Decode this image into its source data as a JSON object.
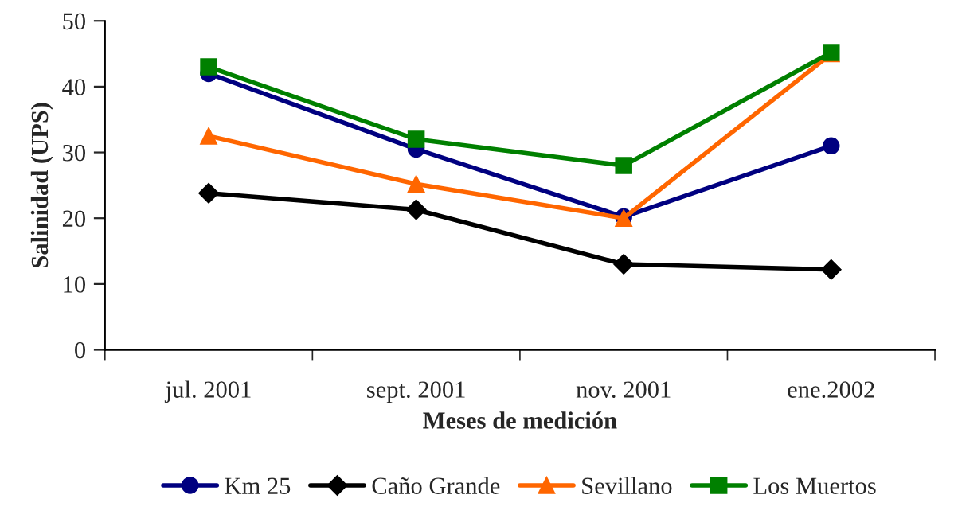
{
  "chart_data": {
    "type": "line",
    "xlabel": "Meses de medición",
    "ylabel": "Salinidad (UPS)",
    "categories": [
      "jul. 2001",
      "sept. 2001",
      "nov. 2001",
      "ene.2002"
    ],
    "series": [
      {
        "name": "Km 25",
        "color": "#000080",
        "marker": "circle",
        "values": [
          42,
          30.5,
          20.2,
          31
        ]
      },
      {
        "name": "Caño Grande",
        "color": "#000000",
        "marker": "diamond",
        "values": [
          23.8,
          21.3,
          13,
          12.2
        ]
      },
      {
        "name": "Sevillano",
        "color": "#ff6600",
        "marker": "triangle",
        "values": [
          32.5,
          25.2,
          20,
          45
        ]
      },
      {
        "name": "Los Muertos",
        "color": "#008000",
        "marker": "square",
        "values": [
          43,
          32,
          28,
          45.2
        ]
      }
    ],
    "ylim": [
      0,
      50
    ],
    "yticks": [
      0,
      10,
      20,
      30,
      40,
      50
    ],
    "grid": false,
    "legend": "bottom"
  }
}
